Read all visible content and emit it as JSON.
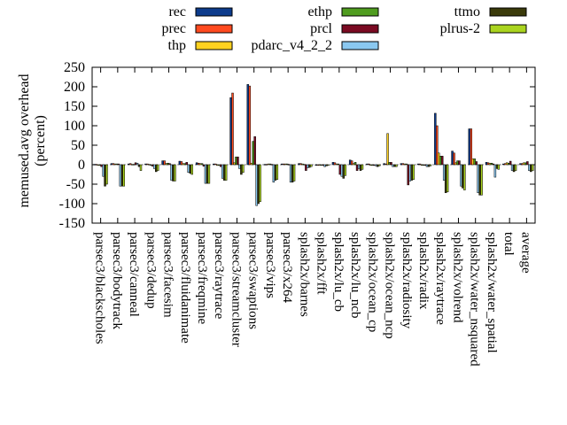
{
  "chart_data": {
    "type": "bar",
    "title": "",
    "xlabel": "",
    "ylabel": "memused.avg overhead\n(percent)",
    "ylim": [
      -150,
      250
    ],
    "yticks": [
      -150,
      -100,
      -50,
      0,
      50,
      100,
      150,
      200,
      250
    ],
    "grid": false,
    "legend_position": "top",
    "categories": [
      "parsec3/blackscholes",
      "parsec3/bodytrack",
      "parsec3/canneal",
      "parsec3/dedup",
      "parsec3/facesim",
      "parsec3/fluidanimate",
      "parsec3/freqmine",
      "parsec3/raytrace",
      "parsec3/streamcluster",
      "parsec3/swaptions",
      "parsec3/vips",
      "parsec3/x264",
      "splash2x/barnes",
      "splash2x/fft",
      "splash2x/lu_cb",
      "splash2x/lu_ncb",
      "splash2x/ocean_cp",
      "splash2x/ocean_ncp",
      "splash2x/radiosity",
      "splash2x/radix",
      "splash2x/raytrace",
      "splash2x/volrend",
      "splash2x/water_nsquared",
      "splash2x/water_spatial",
      "total",
      "average"
    ],
    "series": [
      {
        "name": "rec",
        "color": "#0d3b8c",
        "values": [
          1,
          3,
          2,
          2,
          10,
          9,
          5,
          2,
          172,
          206,
          1,
          2,
          3,
          -1,
          6,
          12,
          2,
          3,
          3,
          2,
          132,
          35,
          92,
          6,
          2,
          3
        ]
      },
      {
        "name": "prec",
        "color": "#ff4a1f",
        "values": [
          1,
          3,
          3,
          2,
          10,
          8,
          4,
          2,
          184,
          202,
          1,
          2,
          3,
          0,
          5,
          10,
          2,
          2,
          3,
          2,
          100,
          30,
          92,
          5,
          3,
          3
        ]
      },
      {
        "name": "thp",
        "color": "#ffd21f",
        "values": [
          0,
          2,
          1,
          1,
          3,
          3,
          3,
          -2,
          5,
          4,
          2,
          2,
          2,
          0,
          2,
          3,
          -1,
          80,
          2,
          0,
          30,
          5,
          15,
          4,
          5,
          5
        ]
      },
      {
        "name": "ethp",
        "color": "#4f9c1f",
        "values": [
          -2,
          2,
          1,
          0,
          4,
          3,
          3,
          -2,
          20,
          60,
          2,
          2,
          1,
          0,
          2,
          6,
          -2,
          6,
          2,
          0,
          22,
          10,
          15,
          4,
          4,
          5
        ]
      },
      {
        "name": "prcl",
        "color": "#7a0a22",
        "values": [
          -5,
          2,
          5,
          -4,
          3,
          6,
          -4,
          -5,
          20,
          72,
          1,
          1,
          -15,
          0,
          -25,
          -15,
          -2,
          6,
          -52,
          0,
          22,
          10,
          8,
          2,
          9,
          8
        ]
      },
      {
        "name": "pdarc_v4_2_2",
        "color": "#8ac8f0",
        "values": [
          -30,
          -55,
          4,
          -10,
          -40,
          -20,
          -48,
          -35,
          -10,
          -105,
          -45,
          -45,
          -8,
          -5,
          -30,
          -10,
          -3,
          -5,
          -42,
          -5,
          -40,
          -55,
          -72,
          -32,
          -15,
          -15
        ]
      },
      {
        "name": "ttmo",
        "color": "#3a3a0a",
        "values": [
          -55,
          -55,
          -5,
          -18,
          -42,
          -22,
          -48,
          -40,
          -25,
          -100,
          -40,
          -45,
          -7,
          -3,
          -35,
          -15,
          -5,
          -5,
          -40,
          -5,
          -72,
          -60,
          -78,
          -10,
          -18,
          -18
        ]
      },
      {
        "name": "plrus-2",
        "color": "#aad41f",
        "values": [
          -50,
          -55,
          -15,
          -15,
          -42,
          -25,
          -48,
          -40,
          -20,
          -95,
          -38,
          -42,
          -5,
          -2,
          -28,
          -12,
          -3,
          -5,
          -38,
          -3,
          -70,
          -65,
          -78,
          -12,
          -15,
          -15
        ]
      }
    ]
  }
}
